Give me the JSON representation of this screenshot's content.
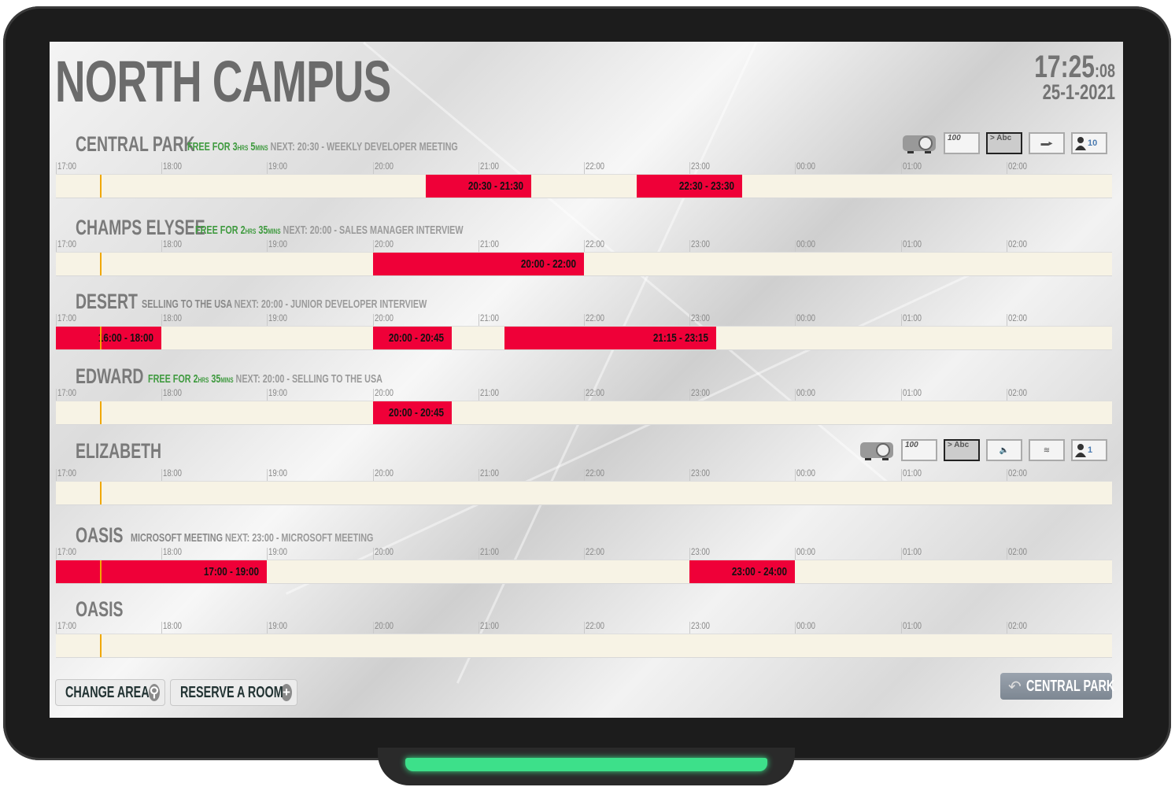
{
  "header": {
    "title": "NORTH CAMPUS",
    "time": "17:25",
    "seconds": ":08",
    "date": "25-1-2021"
  },
  "colors": {
    "booked": "#ef0038",
    "free_text": "#3f9a3f",
    "now_line": "#f0a800",
    "track": "#f7f3e5"
  },
  "timeline": {
    "hours": [
      "17:00",
      "18:00",
      "19:00",
      "20:00",
      "21:00",
      "22:00",
      "23:00",
      "00:00",
      "01:00",
      "02:00"
    ],
    "start": "17:00",
    "end": "03:00",
    "now": "17:25"
  },
  "rooms": [
    {
      "name": "CENTRAL PARK",
      "status": {
        "type": "free",
        "prefix": "FREE FOR ",
        "hrs": "3",
        "hrs_unit": "HRS",
        "mins": "5",
        "mins_unit": "MINS"
      },
      "next": "NEXT: 20:30 - WEEKLY DEVELOPER MEETING",
      "amenities": [
        {
          "icon": "projector-icon"
        },
        {
          "icon": "whiteboard-icon",
          "text": "100"
        },
        {
          "icon": "display-icon",
          "text": "> Abc"
        },
        {
          "icon": "video-camera-icon"
        },
        {
          "icon": "capacity-icon",
          "text": "10"
        }
      ],
      "bookings": [
        {
          "start": "20:30",
          "end": "21:30",
          "label": "20:30 - 21:30"
        },
        {
          "start": "22:30",
          "end": "23:30",
          "label": "22:30 - 23:30"
        }
      ]
    },
    {
      "name": "CHAMPS ELYSEE",
      "status": {
        "type": "free",
        "prefix": "FREE FOR ",
        "hrs": "2",
        "hrs_unit": "HRS",
        "mins": "35",
        "mins_unit": "MINS"
      },
      "next": "NEXT: 20:00 - SALES MANAGER INTERVIEW",
      "amenities": [],
      "bookings": [
        {
          "start": "20:00",
          "end": "22:00",
          "label": "20:00 - 22:00"
        }
      ]
    },
    {
      "name": "DESERT",
      "status": {
        "type": "busy",
        "text": "SELLING TO THE USA"
      },
      "next": "NEXT: 20:00 - JUNIOR DEVELOPER INTERVIEW",
      "amenities": [],
      "bookings": [
        {
          "start": "16:00",
          "end": "18:00",
          "label": "16:00 - 18:00"
        },
        {
          "start": "20:00",
          "end": "20:45",
          "label": "20:00 - 20:45"
        },
        {
          "start": "21:15",
          "end": "23:15",
          "label": "21:15 - 23:15"
        }
      ]
    },
    {
      "name": "EDWARD",
      "status": {
        "type": "free",
        "prefix": "FREE FOR ",
        "hrs": "2",
        "hrs_unit": "HRS",
        "mins": "35",
        "mins_unit": "MINS"
      },
      "next": "NEXT: 20:00 - SELLING TO THE USA",
      "amenities": [],
      "bookings": [
        {
          "start": "20:00",
          "end": "20:45",
          "label": "20:00 - 20:45"
        }
      ]
    },
    {
      "name": "ELIZABETH",
      "status": null,
      "next": "",
      "amenities": [
        {
          "icon": "projector-icon"
        },
        {
          "icon": "whiteboard-icon",
          "text": "100"
        },
        {
          "icon": "display-icon",
          "text": "> Abc"
        },
        {
          "icon": "speaker-icon"
        },
        {
          "icon": "wifi-icon"
        },
        {
          "icon": "capacity-icon",
          "text": "1"
        }
      ],
      "bookings": []
    },
    {
      "name": "OASIS",
      "status": {
        "type": "busy",
        "text": "MICROSOFT MEETING"
      },
      "next": "NEXT: 23:00 - MICROSOFT MEETING",
      "amenities": [],
      "bookings": [
        {
          "start": "17:00",
          "end": "19:00",
          "label": "17:00 - 19:00"
        },
        {
          "start": "23:00",
          "end": "24:00",
          "label": "23:00 - 24:00"
        }
      ]
    },
    {
      "name": "OASIS",
      "status": null,
      "next": "",
      "amenities": [],
      "bookings": []
    }
  ],
  "footer": {
    "change_area": "CHANGE AREA",
    "reserve": "RESERVE A ROOM",
    "back": "CENTRAL PARK"
  }
}
